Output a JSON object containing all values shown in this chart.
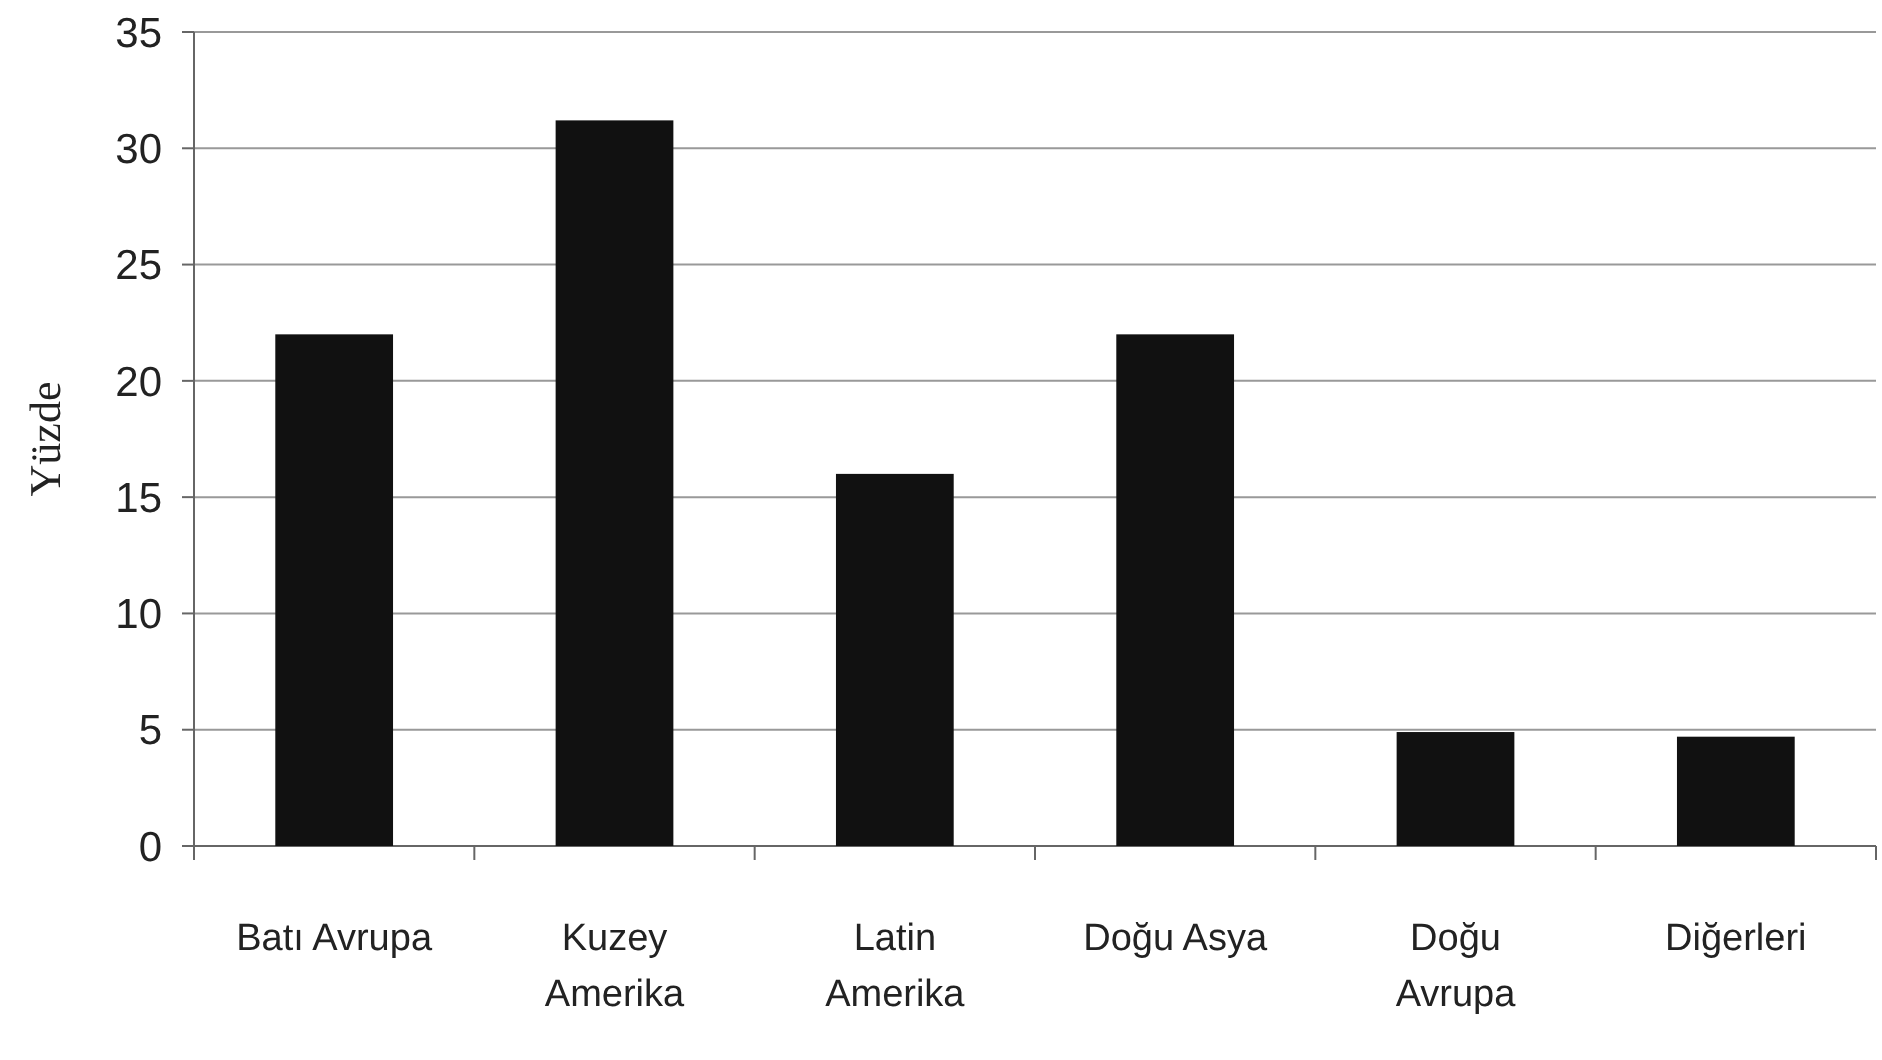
{
  "chart_data": {
    "type": "bar",
    "ylabel": "Yüzde",
    "categories": [
      "Batı Avrupa",
      "Kuzey\nAmerika",
      "Latin\nAmerika",
      "Doğu Asya",
      "Doğu\nAvrupa",
      "Diğerleri"
    ],
    "values": [
      22,
      31.2,
      16,
      22,
      4.9,
      4.7
    ],
    "color": "#111111",
    "ylim": [
      0,
      35
    ],
    "yticks": [
      0,
      5,
      10,
      15,
      20,
      25,
      30,
      35
    ],
    "grid": "y"
  }
}
